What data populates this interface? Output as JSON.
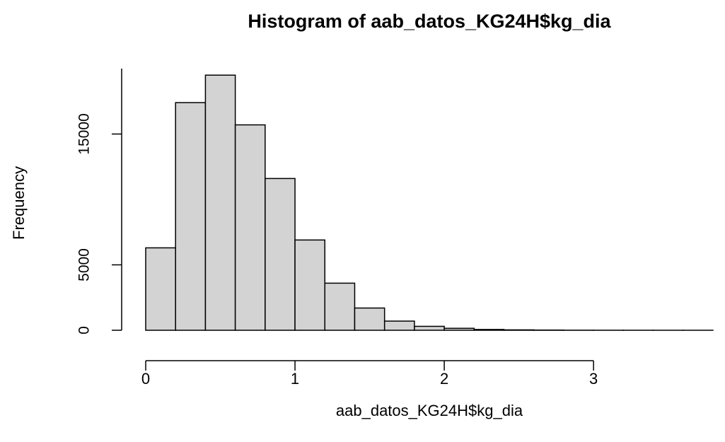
{
  "chart_data": {
    "type": "histogram",
    "title": "Histogram of aab_datos_KG24H$kg_dia",
    "x_label": "aab_datos_KG24H$kg_dia",
    "y_label": "Frequency",
    "bins": [
      0,
      0.2,
      0.4,
      0.6,
      0.8,
      1.0,
      1.2,
      1.4,
      1.6,
      1.8,
      2.0,
      2.2,
      2.4,
      2.6,
      2.8,
      3.0,
      3.2,
      3.4,
      3.6,
      3.8
    ],
    "values": [
      6300,
      17400,
      19500,
      15700,
      11600,
      6900,
      3600,
      1700,
      700,
      300,
      150,
      60,
      30,
      15,
      5,
      3,
      2,
      1,
      1
    ],
    "color": "#d3d3d3",
    "xlim": [
      0,
      3.8
    ],
    "xticks": [
      0,
      1,
      2,
      3
    ],
    "ylim": [
      0,
      20000
    ],
    "yticks": [
      0,
      5000,
      15000
    ]
  }
}
